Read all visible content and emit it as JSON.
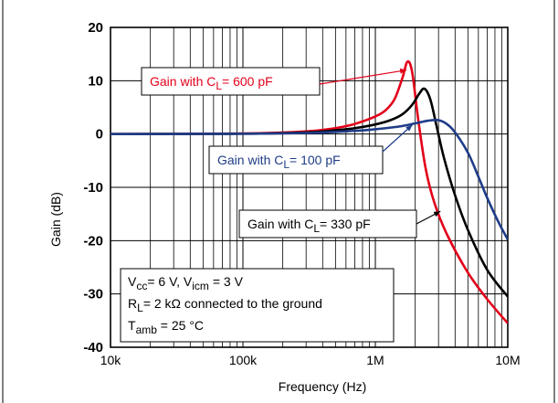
{
  "chart_data": {
    "type": "line",
    "title": "",
    "xlabel": "Frequency  (Hz)",
    "ylabel": "Gain (dB)",
    "xscale": "log",
    "xlim": [
      10000,
      10000000
    ],
    "ylim": [
      -40,
      20
    ],
    "grid": true,
    "x_major_ticks": [
      {
        "value": 10000,
        "label": "10k"
      },
      {
        "value": 100000,
        "label": "100k"
      },
      {
        "value": 1000000,
        "label": "1M"
      },
      {
        "value": 10000000,
        "label": "10M"
      }
    ],
    "y_ticks": [
      {
        "value": 20,
        "label": "20"
      },
      {
        "value": 10,
        "label": "10"
      },
      {
        "value": 0,
        "label": "0"
      },
      {
        "value": -10,
        "label": "-10"
      },
      {
        "value": -20,
        "label": "-20"
      },
      {
        "value": -30,
        "label": "-30"
      },
      {
        "value": -40,
        "label": "-40"
      }
    ],
    "series": [
      {
        "name": "Gain with CL = 600 pF",
        "color": "#e2001a",
        "x": [
          10000,
          100000,
          300000,
          500000,
          700000,
          1000000,
          1200000,
          1400000,
          1600000,
          1750000,
          1900000,
          2100000,
          2400000,
          2800000,
          3500000,
          5000000,
          7000000,
          10000000
        ],
        "y": [
          0,
          0.1,
          0.5,
          1.1,
          1.9,
          3.3,
          4.5,
          6.6,
          10.5,
          13.6,
          11.5,
          3.0,
          -6.5,
          -13.0,
          -19.0,
          -26.0,
          -31.0,
          -35.5
        ]
      },
      {
        "name": "Gain with CL = 330 pF",
        "color": "#000000",
        "x": [
          10000,
          100000,
          300000,
          500000,
          700000,
          1000000,
          1300000,
          1600000,
          1900000,
          2150000,
          2350000,
          2600000,
          2900000,
          3300000,
          4000000,
          5000000,
          7000000,
          10000000
        ],
        "y": [
          0,
          0.05,
          0.3,
          0.7,
          1.1,
          1.8,
          2.6,
          3.7,
          5.5,
          7.6,
          8.5,
          6.5,
          1.5,
          -4.5,
          -11.5,
          -18.0,
          -25.5,
          -30.5
        ]
      },
      {
        "name": "Gain with CL = 100 pF",
        "color": "#1f3c88",
        "x": [
          10000,
          100000,
          300000,
          700000,
          1000000,
          1500000,
          2000000,
          2500000,
          3000000,
          3500000,
          4000000,
          5000000,
          6000000,
          7000000,
          8500000,
          10000000
        ],
        "y": [
          0,
          0.05,
          0.2,
          0.6,
          0.9,
          1.4,
          2.0,
          2.5,
          2.6,
          1.8,
          0.3,
          -3.5,
          -8.0,
          -12.0,
          -16.5,
          -19.8
        ]
      }
    ],
    "annotations": [
      {
        "id": "600",
        "prefix": "Gain with C",
        "sub": "L",
        "suffix": "= 600 pF",
        "color": "#e2001a",
        "arrow_to": [
          1720000,
          12.0
        ]
      },
      {
        "id": "100",
        "prefix": "Gain with C",
        "sub": "L",
        "suffix": "= 100 pF",
        "color": "#1f3c88",
        "arrow_to": [
          1900000,
          1.7
        ]
      },
      {
        "id": "330",
        "prefix": "Gain with C",
        "sub": "L",
        "suffix": "= 330 pF",
        "color": "#000000",
        "arrow_to": [
          3100000,
          -14.5
        ]
      }
    ],
    "conditions": [
      {
        "id": "line1",
        "text": "V_{cc}= 6 V, V_{icm} = 3 V"
      },
      {
        "id": "line2",
        "text": "R_{L}= 2 kΩ  connected to the ground"
      },
      {
        "id": "line3",
        "text": "T_{amb} = 25 °C"
      }
    ]
  }
}
